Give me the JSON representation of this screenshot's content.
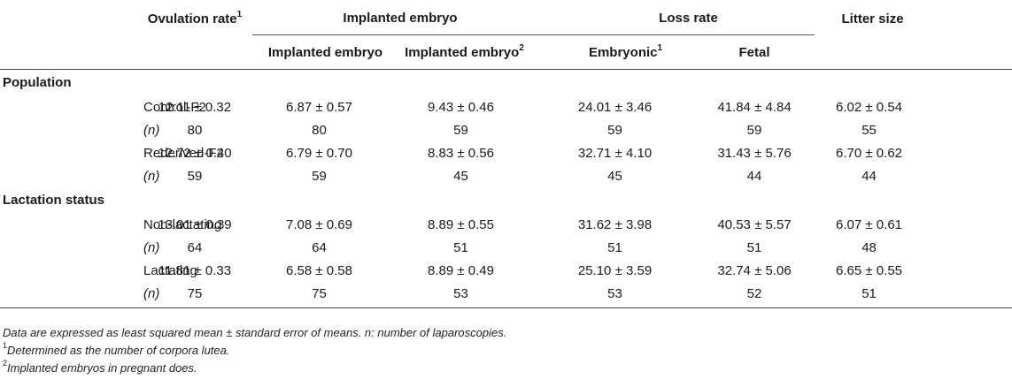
{
  "header": {
    "ovulation_rate": "Ovulation rate",
    "ovulation_rate_sup": "1",
    "implanted_group": "Implanted embryo",
    "loss_rate_group": "Loss rate",
    "litter_size": "Litter size",
    "sub_implanted_1": "Implanted embryo",
    "sub_implanted_2": "Implanted embryo",
    "sub_implanted_2_sup": "2",
    "sub_embryonic": "Embryonic",
    "sub_embryonic_sup": "1",
    "sub_fetal": "Fetal"
  },
  "sections": [
    {
      "title": "Population",
      "rows": [
        {
          "label": "Control-F2",
          "italic": false,
          "values": [
            "12.11 ± 0.32",
            "6.87 ± 0.57",
            "9.43 ± 0.46",
            "24.01 ± 3.46",
            "41.84 ± 4.84",
            "6.02 ± 0.54"
          ]
        },
        {
          "label": "(n)",
          "italic": true,
          "values": [
            "80",
            "80",
            "59",
            "59",
            "59",
            "55"
          ]
        },
        {
          "label": "Rederived-F2",
          "italic": false,
          "values": [
            "12.72 ± 0.40",
            "6.79 ± 0.70",
            "8.83 ± 0.56",
            "32.71 ± 4.10",
            "31.43 ± 5.76",
            "6.70 ± 0.62"
          ]
        },
        {
          "label": "(n)",
          "italic": true,
          "values": [
            "59",
            "59",
            "45",
            "45",
            "44",
            "44"
          ]
        }
      ]
    },
    {
      "title": "Lactation status",
      "rows": [
        {
          "label": "Non-lactating",
          "italic": false,
          "values": [
            "13.01 ± 0.39",
            "7.08 ± 0.69",
            "8.89 ± 0.55",
            "31.62 ± 3.98",
            "40.53 ± 5.57",
            "6.07 ± 0.61"
          ]
        },
        {
          "label": "(n)",
          "italic": true,
          "values": [
            "64",
            "64",
            "51",
            "51",
            "51",
            "48"
          ]
        },
        {
          "label": "Lactating",
          "italic": false,
          "values": [
            "11.81 ± 0.33",
            "6.58 ± 0.58",
            "8.89 ± 0.49",
            "25.10 ± 3.59",
            "32.74 ± 5.06",
            "6.65 ± 0.55"
          ]
        },
        {
          "label": "(n)",
          "italic": true,
          "values": [
            "75",
            "75",
            "53",
            "53",
            "52",
            "51"
          ]
        }
      ]
    }
  ],
  "footnotes": {
    "note_main": "Data are expressed as least squared mean ± standard error of means. n: number of laparoscopies.",
    "note_1_marker": "1",
    "note_1": "Determined as the number of corpora lutea.",
    "note_2_marker": "2",
    "note_2": "Implanted embryos in pregnant does."
  }
}
